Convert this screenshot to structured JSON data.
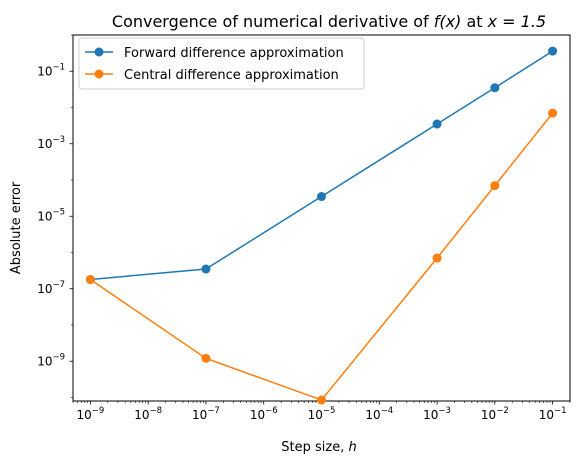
{
  "chart_data": {
    "type": "line",
    "title": "Convergence of numerical derivative of f(x) at x = 1.5",
    "title_parts": {
      "prefix": "Convergence of numerical derivative of ",
      "fx": "f(x)",
      "mid": " at ",
      "xeq": "x = 1.5"
    },
    "xlabel": "Step size, h",
    "xlabel_parts": {
      "text": "Step size, ",
      "var": "h"
    },
    "ylabel": "Absolute error",
    "xscale": "log",
    "yscale": "log",
    "xlim": [
      5e-10,
      0.2
    ],
    "ylim": [
      8e-11,
      1.0
    ],
    "x_major_ticks": [
      {
        "value": 1e-09,
        "label": "10",
        "exp": "−9"
      },
      {
        "value": 1e-08,
        "label": "10",
        "exp": "−8"
      },
      {
        "value": 1e-07,
        "label": "10",
        "exp": "−7"
      },
      {
        "value": 1e-06,
        "label": "10",
        "exp": "−6"
      },
      {
        "value": 1e-05,
        "label": "10",
        "exp": "−5"
      },
      {
        "value": 0.0001,
        "label": "10",
        "exp": "−4"
      },
      {
        "value": 0.001,
        "label": "10",
        "exp": "−3"
      },
      {
        "value": 0.01,
        "label": "10",
        "exp": "−2"
      },
      {
        "value": 0.1,
        "label": "10",
        "exp": "−1"
      }
    ],
    "y_major_ticks": [
      {
        "value": 1e-09,
        "label": "10",
        "exp": "−9"
      },
      {
        "value": 1e-07,
        "label": "10",
        "exp": "−7"
      },
      {
        "value": 1e-05,
        "label": "10",
        "exp": "−5"
      },
      {
        "value": 0.001,
        "label": "10",
        "exp": "−3"
      },
      {
        "value": 0.1,
        "label": "10",
        "exp": "−1"
      }
    ],
    "x": [
      1e-09,
      1e-07,
      1e-05,
      0.001,
      0.01,
      0.1
    ],
    "series": [
      {
        "name": "Forward difference approximation",
        "color": "#1f77b4",
        "values": [
          1.8e-07,
          3.5e-07,
          3.5e-05,
          0.0035,
          0.035,
          0.36
        ]
      },
      {
        "name": "Central difference approximation",
        "color": "#ff7f0e",
        "values": [
          1.8e-07,
          1.2e-09,
          8.5e-11,
          7e-07,
          7e-05,
          0.007
        ]
      }
    ],
    "legend": "top-left",
    "grid": false
  }
}
